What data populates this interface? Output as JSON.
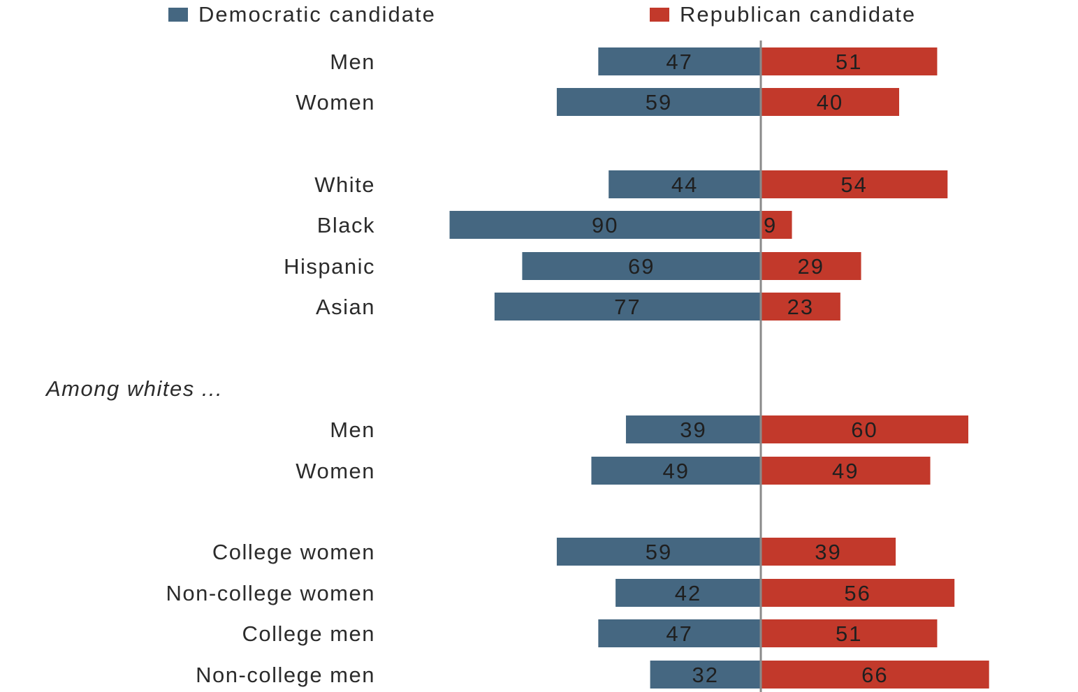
{
  "chart_data": {
    "type": "bar",
    "orientation": "horizontal-diverging",
    "title": "",
    "xlabel": "",
    "ylabel": "",
    "legend": {
      "placement": "top-right",
      "entries": [
        {
          "name": "Democratic candidate",
          "color": "#456781"
        },
        {
          "name": "Republican candidate",
          "color": "#c2392b"
        }
      ]
    },
    "series": [
      {
        "name": "Democratic candidate",
        "color": "#456781",
        "direction": "left"
      },
      {
        "name": "Republican candidate",
        "color": "#c2392b",
        "direction": "right"
      }
    ],
    "rows": [
      {
        "label": "Men",
        "dem": 47,
        "rep": 51
      },
      {
        "label": "Women",
        "dem": 59,
        "rep": 40
      },
      {
        "label": "White",
        "dem": 44,
        "rep": 54
      },
      {
        "label": "Black",
        "dem": 90,
        "rep": 9
      },
      {
        "label": "Hispanic",
        "dem": 69,
        "rep": 29
      },
      {
        "label": "Asian",
        "dem": 77,
        "rep": 23
      },
      {
        "heading": "Among whites ..."
      },
      {
        "label": "Men",
        "dem": 39,
        "rep": 60
      },
      {
        "label": "Women",
        "dem": 49,
        "rep": 49
      },
      {
        "label": "College women",
        "dem": 59,
        "rep": 39
      },
      {
        "label": "Non-college women",
        "dem": 42,
        "rep": 56
      },
      {
        "label": "College men",
        "dem": 47,
        "rep": 51
      },
      {
        "label": "Non-college men",
        "dem": 32,
        "rep": 66
      }
    ],
    "xlim": [
      0,
      100
    ],
    "center_line_color": "#8a8a8a"
  }
}
